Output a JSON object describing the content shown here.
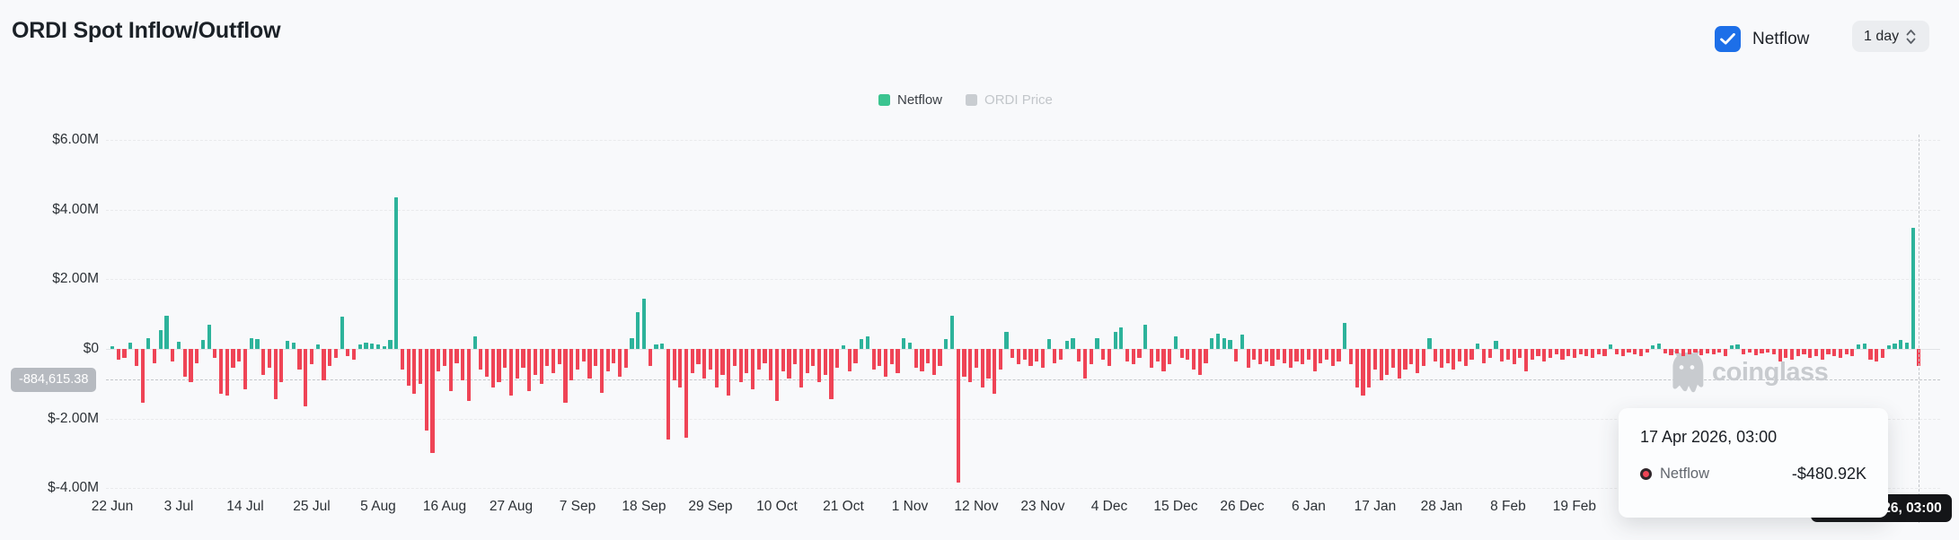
{
  "header": {
    "title": "ORDI Spot Inflow/Outflow",
    "netflow_toggle_label": "Netflow",
    "netflow_toggle_checked": true,
    "interval_value": "1 day"
  },
  "colors": {
    "accent_blue": "#1d6fe8",
    "positive_green": "#2db39b",
    "negative_red": "#ef4456",
    "legend_green": "#3bc490",
    "legend_gray": "#c9cdd1",
    "background": "#f8f9fb"
  },
  "legend": {
    "items": [
      {
        "label": "Netflow",
        "color": "#3bc490",
        "active": true
      },
      {
        "label": "ORDI Price",
        "color": "#c9cdd1",
        "active": false
      }
    ]
  },
  "watermark": {
    "text": "coinglass"
  },
  "tooltip": {
    "title": "17 Apr 2026, 03:00",
    "series_label": "Netflow",
    "value": "-$480.92K",
    "dot_color": "#ef4456"
  },
  "chart_data": {
    "type": "bar",
    "title": "ORDI Spot Inflow/Outflow",
    "unit": "USD millions",
    "grid": "dashed horizontal",
    "legend_position": "top-center",
    "y_axis": {
      "ticks": [
        {
          "label": "$6.00M",
          "value": 6
        },
        {
          "label": "$4.00M",
          "value": 4
        },
        {
          "label": "$2.00M",
          "value": 2
        },
        {
          "label": "$0",
          "value": 0
        },
        {
          "label": "$-2.00M",
          "value": -2
        },
        {
          "label": "$-4.00M",
          "value": -4
        }
      ],
      "range_musd": [
        -4.6,
        6.4
      ]
    },
    "x_axis": {
      "tick_labels": [
        "22 Jun",
        "3 Jul",
        "14 Jul",
        "25 Jul",
        "5 Aug",
        "16 Aug",
        "27 Aug",
        "7 Sep",
        "18 Sep",
        "29 Sep",
        "10 Oct",
        "21 Oct",
        "1 Nov",
        "12 Nov",
        "23 Nov",
        "4 Dec",
        "15 Dec",
        "26 Dec",
        "6 Jan",
        "17 Jan",
        "28 Jan",
        "8 Feb",
        "19 Feb"
      ],
      "tick_every_n_bars": 11,
      "bar_interval": "1 day"
    },
    "series": [
      {
        "name": "Netflow",
        "positive_color": "#2db39b",
        "negative_color": "#ef4456"
      },
      {
        "name": "ORDI Price",
        "hidden": true
      }
    ],
    "current_value": {
      "label": "-884,615.38",
      "value_musd": -0.884615
    },
    "crosshair": {
      "x_index": 299,
      "axis_badge_text": "17 Apr 2026, 03:00",
      "hovered_value": "-$480.92K"
    },
    "values_musd": [
      0.08,
      -0.3,
      -0.25,
      0.18,
      -0.5,
      -1.55,
      0.3,
      -0.4,
      0.55,
      0.95,
      -0.35,
      0.2,
      -0.8,
      -0.95,
      -0.4,
      0.25,
      0.7,
      -0.25,
      -1.3,
      -1.35,
      -0.55,
      -0.35,
      -1.15,
      0.32,
      0.28,
      -0.75,
      -0.55,
      -1.45,
      -0.95,
      0.22,
      0.18,
      -0.6,
      -1.65,
      -0.45,
      0.12,
      -0.9,
      -0.5,
      -0.25,
      0.92,
      -0.2,
      -0.3,
      0.12,
      0.18,
      0.15,
      0.12,
      0.08,
      0.25,
      4.35,
      -0.6,
      -1.05,
      -1.3,
      -1.0,
      -2.35,
      -3.0,
      -0.65,
      -0.5,
      -1.2,
      -0.4,
      -0.9,
      -1.5,
      0.35,
      -0.6,
      -0.8,
      -1.1,
      -0.95,
      -0.55,
      -1.35,
      -0.85,
      -0.55,
      -1.2,
      -0.75,
      -1.0,
      -0.5,
      -0.7,
      -0.45,
      -1.55,
      -0.9,
      -0.6,
      -0.35,
      -0.85,
      -0.5,
      -1.25,
      -0.65,
      -0.4,
      -0.8,
      -0.55,
      0.3,
      1.05,
      1.45,
      -0.5,
      0.12,
      0.15,
      -2.6,
      -0.9,
      -1.1,
      -2.55,
      -0.7,
      -0.45,
      -0.85,
      -0.6,
      -1.1,
      -0.75,
      -1.35,
      -0.5,
      -0.95,
      -0.7,
      -1.15,
      -0.6,
      -0.4,
      -0.9,
      -1.5,
      -0.65,
      -0.85,
      -0.45,
      -1.1,
      -0.7,
      -0.5,
      -0.95,
      -0.75,
      -1.45,
      -0.55,
      0.1,
      -0.65,
      -0.4,
      0.28,
      0.35,
      -0.6,
      -0.5,
      -0.8,
      -0.45,
      -0.7,
      0.32,
      0.18,
      -0.55,
      -0.65,
      -0.4,
      -0.75,
      -0.5,
      0.28,
      0.95,
      -3.85,
      -0.8,
      -0.95,
      -0.55,
      -1.1,
      -0.85,
      -1.3,
      -0.6,
      0.5,
      -0.25,
      -0.45,
      -0.3,
      -0.5,
      -0.35,
      -0.55,
      0.28,
      -0.4,
      -0.3,
      0.22,
      0.3,
      -0.35,
      -0.85,
      -0.45,
      0.32,
      -0.3,
      -0.5,
      0.5,
      0.62,
      -0.35,
      -0.45,
      -0.25,
      0.7,
      -0.55,
      -0.35,
      -0.65,
      -0.45,
      0.35,
      -0.25,
      -0.3,
      -0.6,
      -0.75,
      -0.4,
      0.3,
      0.45,
      0.32,
      0.25,
      -0.35,
      0.4,
      -0.55,
      -0.3,
      -0.45,
      -0.35,
      -0.5,
      -0.3,
      -0.4,
      -0.55,
      -0.35,
      -0.45,
      -0.3,
      -0.65,
      -0.4,
      -0.3,
      -0.5,
      -0.35,
      0.75,
      -0.45,
      -1.1,
      -1.35,
      -1.1,
      -0.6,
      -0.9,
      -0.75,
      -0.55,
      -0.85,
      -0.6,
      -0.45,
      -0.7,
      -0.5,
      0.3,
      -0.35,
      -0.55,
      -0.4,
      -0.6,
      -0.35,
      -0.5,
      -0.3,
      0.15,
      -0.4,
      -0.25,
      0.22,
      -0.35,
      -0.3,
      -0.45,
      -0.25,
      -0.65,
      -0.3,
      -0.2,
      -0.35,
      -0.25,
      -0.15,
      -0.3,
      -0.2,
      -0.25,
      -0.15,
      -0.2,
      -0.25,
      -0.15,
      -0.2,
      0.12,
      -0.15,
      -0.2,
      -0.1,
      -0.15,
      -0.2,
      -0.1,
      0.1,
      0.15,
      -0.12,
      -0.18,
      -0.12,
      -0.2,
      -0.15,
      -0.1,
      -0.18,
      -0.12,
      -0.15,
      -0.1,
      -0.2,
      0.1,
      0.12,
      -0.15,
      -0.1,
      -0.18,
      -0.12,
      -0.1,
      -0.15,
      -0.35,
      -0.25,
      -0.3,
      -0.2,
      -0.15,
      -0.25,
      -0.2,
      -0.3,
      -0.15,
      -0.2,
      -0.25,
      -0.15,
      -0.2,
      0.12,
      0.15,
      -0.3,
      -0.35,
      -0.25,
      0.1,
      0.15,
      0.25,
      0.18,
      3.48,
      -0.48
    ]
  }
}
